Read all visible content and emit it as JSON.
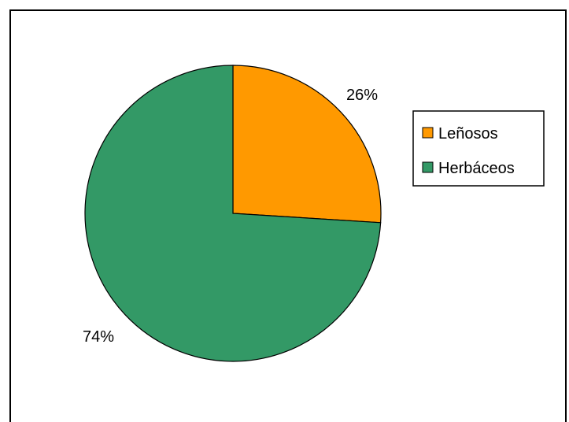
{
  "chart_data": {
    "type": "pie",
    "title": "",
    "categories": [
      "Leñosos",
      "Herbáceos"
    ],
    "values": [
      26,
      74
    ],
    "labels": [
      "26%",
      "74%"
    ],
    "colors": [
      "#FF9900",
      "#339966"
    ],
    "legend_position": "right"
  }
}
